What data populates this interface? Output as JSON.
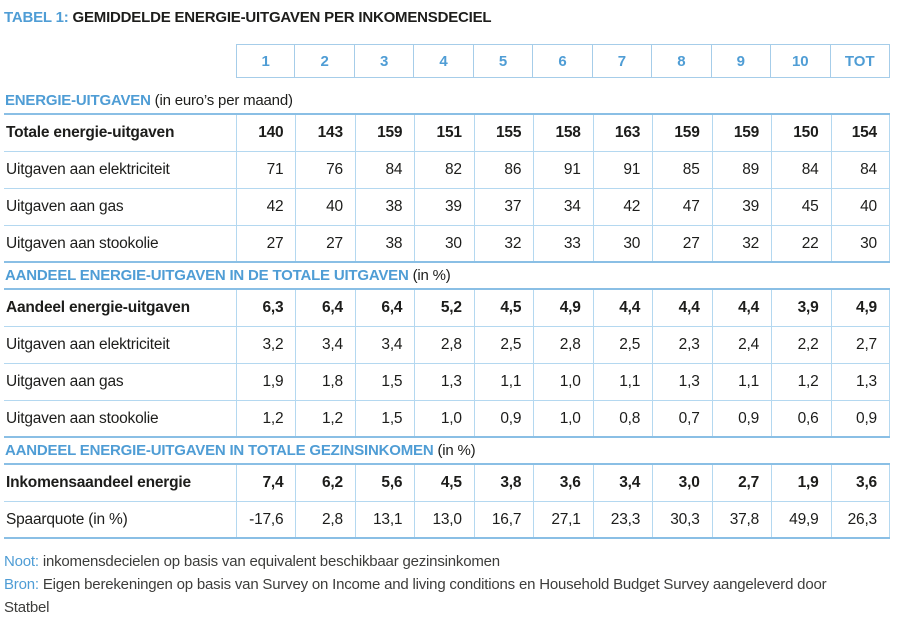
{
  "title": {
    "prefix": "TABEL 1:",
    "text": "GEMIDDELDE ENERGIE-UITGAVEN PER INKOMENSDECIEL"
  },
  "columns": [
    "1",
    "2",
    "3",
    "4",
    "5",
    "6",
    "7",
    "8",
    "9",
    "10",
    "TOT"
  ],
  "sections": [
    {
      "heading": "ENERGIE-UITGAVEN",
      "heading_note": "(in euro’s per maand)",
      "rows": [
        {
          "label": "Totale energie-uitgaven",
          "bold": true,
          "values": [
            "140",
            "143",
            "159",
            "151",
            "155",
            "158",
            "163",
            "159",
            "159",
            "150",
            "154"
          ]
        },
        {
          "label": "Uitgaven aan elektriciteit",
          "bold": false,
          "values": [
            "71",
            "76",
            "84",
            "82",
            "86",
            "91",
            "91",
            "85",
            "89",
            "84",
            "84"
          ]
        },
        {
          "label": "Uitgaven aan gas",
          "bold": false,
          "values": [
            "42",
            "40",
            "38",
            "39",
            "37",
            "34",
            "42",
            "47",
            "39",
            "45",
            "40"
          ]
        },
        {
          "label": "Uitgaven aan stookolie",
          "bold": false,
          "values": [
            "27",
            "27",
            "38",
            "30",
            "32",
            "33",
            "30",
            "27",
            "32",
            "22",
            "30"
          ]
        }
      ]
    },
    {
      "heading": "AANDEEL ENERGIE-UITGAVEN IN DE TOTALE UITGAVEN",
      "heading_note": "(in %)",
      "rows": [
        {
          "label": "Aandeel energie-uitgaven",
          "bold": true,
          "values": [
            "6,3",
            "6,4",
            "6,4",
            "5,2",
            "4,5",
            "4,9",
            "4,4",
            "4,4",
            "4,4",
            "3,9",
            "4,9"
          ]
        },
        {
          "label": "Uitgaven aan elektriciteit",
          "bold": false,
          "values": [
            "3,2",
            "3,4",
            "3,4",
            "2,8",
            "2,5",
            "2,8",
            "2,5",
            "2,3",
            "2,4",
            "2,2",
            "2,7"
          ]
        },
        {
          "label": "Uitgaven aan gas",
          "bold": false,
          "values": [
            "1,9",
            "1,8",
            "1,5",
            "1,3",
            "1,1",
            "1,0",
            "1,1",
            "1,3",
            "1,1",
            "1,2",
            "1,3"
          ]
        },
        {
          "label": "Uitgaven aan stookolie",
          "bold": false,
          "values": [
            "1,2",
            "1,2",
            "1,5",
            "1,0",
            "0,9",
            "1,0",
            "0,8",
            "0,7",
            "0,9",
            "0,6",
            "0,9"
          ]
        }
      ]
    },
    {
      "heading": "AANDEEL ENERGIE-UITGAVEN IN TOTALE GEZINSINKOMEN",
      "heading_note": "(in %)",
      "rows": [
        {
          "label": "Inkomensaandeel energie",
          "bold": true,
          "values": [
            "7,4",
            "6,2",
            "5,6",
            "4,5",
            "3,8",
            "3,6",
            "3,4",
            "3,0",
            "2,7",
            "1,9",
            "3,6"
          ]
        },
        {
          "label": "Spaarquote (in %)",
          "bold": false,
          "values": [
            "-17,6",
            "2,8",
            "13,1",
            "13,0",
            "16,7",
            "27,1",
            "23,3",
            "30,3",
            "37,8",
            "49,9",
            "26,3"
          ]
        }
      ]
    }
  ],
  "notes": [
    {
      "label": "Noot:",
      "text": "inkomensdecielen op basis van equivalent beschikbaar gezinsinkomen"
    },
    {
      "label": "Bron:",
      "text": "Eigen berekeningen op basis van Survey on Income and living conditions en Household Budget Survey aangeleverd door Statbel"
    }
  ],
  "colors": {
    "accent_blue": "#4f9dd5",
    "border_light": "#b4d8f0",
    "border_medium": "#8abfe5",
    "header_border": "#a6cde9",
    "text_dark": "#1d1d1b"
  }
}
